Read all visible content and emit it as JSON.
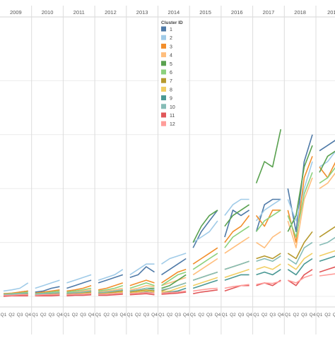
{
  "chart_data": {
    "type": "line",
    "title": "",
    "xlabel": "",
    "ylabel": "",
    "years": [
      "2009",
      "2010",
      "2011",
      "2012",
      "2013",
      "2014",
      "2015",
      "2016",
      "2017",
      "2018",
      "201"
    ],
    "quarters": [
      "Q1",
      "Q2",
      "Q3",
      "Q4"
    ],
    "ylim": [
      0,
      50
    ],
    "grid": true,
    "legend": {
      "title": "Cluster ID",
      "position": "top-center"
    },
    "series": [
      {
        "name": "1",
        "color": "#4e79a7",
        "values": [
          0.5,
          0.5,
          0.8,
          1.0,
          0.8,
          1.0,
          1.5,
          1.8,
          1.5,
          2.0,
          2.5,
          3.0,
          2.5,
          3.0,
          3.5,
          4.0,
          3.5,
          4.0,
          5.5,
          4.5,
          4.0,
          5.0,
          6.0,
          7.0,
          9.0,
          12.0,
          14.0,
          16.0,
          11.0,
          16.0,
          15.0,
          16.0,
          12.0,
          17.0,
          18.0,
          18.0,
          20.0,
          12.0,
          25.0,
          30.0,
          27.0,
          28.0,
          29.0,
          30.0
        ]
      },
      {
        "name": "2",
        "color": "#a0cbe8",
        "values": [
          1.0,
          1.2,
          1.5,
          2.5,
          1.5,
          2.0,
          2.5,
          3.0,
          2.5,
          3.0,
          3.5,
          4.0,
          3.0,
          3.5,
          4.0,
          5.0,
          4.0,
          5.0,
          6.0,
          6.0,
          6.0,
          7.0,
          7.5,
          8.0,
          10.0,
          11.0,
          12.0,
          14.0,
          15.0,
          17.0,
          18.0,
          18.0,
          14.0,
          16.0,
          17.0,
          18.0,
          18.0,
          14.0,
          20.0,
          25.0,
          24.0,
          25.0,
          27.0,
          28.0
        ]
      },
      {
        "name": "3",
        "color": "#f28e2b",
        "values": [
          0.5,
          0.6,
          0.8,
          1.0,
          0.6,
          0.8,
          1.0,
          1.2,
          1.0,
          1.2,
          1.5,
          2.0,
          1.2,
          1.5,
          2.0,
          2.5,
          2.0,
          2.5,
          3.0,
          2.5,
          2.5,
          3.5,
          4.5,
          5.0,
          6.0,
          7.0,
          8.0,
          9.0,
          10.0,
          12.0,
          13.0,
          15.0,
          15.0,
          13.0,
          16.0,
          16.0,
          16.0,
          10.0,
          22.0,
          26.0,
          24.0,
          22.0,
          25.0,
          27.0
        ]
      },
      {
        "name": "4",
        "color": "#ffbe7d",
        "values": [
          0.3,
          0.4,
          0.5,
          0.6,
          0.4,
          0.5,
          0.6,
          0.8,
          0.6,
          0.8,
          1.0,
          1.2,
          0.8,
          1.0,
          1.2,
          1.5,
          1.2,
          1.5,
          2.0,
          1.8,
          2.0,
          2.5,
          3.0,
          3.5,
          4.0,
          5.0,
          6.0,
          7.0,
          8.0,
          9.0,
          10.0,
          11.0,
          10.0,
          9.0,
          11.0,
          12.0,
          14.0,
          9.0,
          18.0,
          22.0,
          20.0,
          21.0,
          23.0,
          24.0
        ]
      },
      {
        "name": "5",
        "color": "#59a14f",
        "values": [
          0.2,
          0.3,
          0.4,
          0.5,
          0.3,
          0.4,
          0.5,
          0.6,
          0.5,
          0.6,
          0.8,
          1.0,
          0.6,
          0.8,
          1.0,
          1.2,
          1.0,
          1.2,
          1.5,
          1.5,
          1.5,
          2.0,
          3.0,
          4.0,
          10.0,
          13.0,
          15.0,
          16.0,
          13.0,
          15.0,
          16.0,
          17.0,
          21.0,
          25.0,
          24.0,
          31.0,
          12.0,
          15.0,
          24.0,
          28.0,
          23.0,
          26.0,
          27.0,
          28.0
        ]
      },
      {
        "name": "6",
        "color": "#8cd17d",
        "values": [
          0.4,
          0.5,
          0.6,
          0.8,
          0.5,
          0.6,
          0.8,
          1.0,
          0.8,
          1.0,
          1.2,
          1.5,
          1.0,
          1.2,
          1.5,
          2.0,
          1.5,
          2.0,
          2.5,
          2.0,
          2.0,
          3.0,
          4.0,
          4.5,
          5.0,
          6.0,
          7.0,
          8.0,
          9.0,
          11.0,
          12.0,
          13.0,
          12.0,
          14.0,
          15.0,
          16.0,
          15.0,
          11.0,
          19.0,
          23.0,
          21.0,
          22.0,
          24.0,
          25.0
        ]
      },
      {
        "name": "7",
        "color": "#b6992d",
        "values": [
          0.2,
          0.2,
          0.3,
          0.4,
          0.2,
          0.3,
          0.4,
          0.5,
          0.4,
          0.5,
          0.6,
          0.8,
          0.5,
          0.6,
          0.8,
          1.0,
          0.8,
          1.0,
          1.2,
          1.0,
          1.0,
          1.5,
          2.0,
          2.5,
          3.0,
          3.5,
          4.0,
          4.5,
          5.0,
          5.5,
          6.0,
          6.5,
          7.0,
          7.5,
          7.0,
          8.0,
          8.0,
          7.0,
          10.0,
          12.0,
          11.0,
          12.0,
          13.0,
          14.0
        ]
      },
      {
        "name": "8",
        "color": "#f1ce63",
        "values": [
          0.1,
          0.2,
          0.2,
          0.3,
          0.2,
          0.2,
          0.3,
          0.4,
          0.3,
          0.4,
          0.5,
          0.6,
          0.4,
          0.5,
          0.6,
          0.8,
          0.6,
          0.8,
          1.0,
          0.8,
          0.8,
          1.0,
          1.5,
          2.0,
          2.0,
          2.5,
          3.0,
          3.5,
          3.5,
          4.0,
          4.5,
          5.0,
          5.0,
          5.5,
          5.0,
          6.0,
          6.0,
          5.0,
          7.0,
          8.0,
          7.5,
          8.0,
          8.5,
          9.0
        ]
      },
      {
        "name": "9",
        "color": "#499894",
        "values": [
          0.1,
          0.1,
          0.2,
          0.2,
          0.1,
          0.2,
          0.2,
          0.3,
          0.2,
          0.3,
          0.4,
          0.5,
          0.3,
          0.4,
          0.5,
          0.6,
          0.5,
          0.6,
          0.8,
          0.6,
          0.6,
          0.8,
          1.0,
          1.5,
          1.5,
          2.0,
          2.5,
          3.0,
          3.0,
          3.5,
          4.0,
          4.0,
          4.0,
          4.5,
          4.0,
          5.0,
          5.0,
          4.0,
          6.0,
          7.0,
          6.5,
          7.0,
          7.5,
          8.0
        ]
      },
      {
        "name": "10",
        "color": "#86bcb6",
        "values": [
          0.3,
          0.4,
          0.5,
          0.6,
          0.4,
          0.5,
          0.6,
          0.7,
          0.6,
          0.7,
          0.8,
          1.0,
          0.7,
          0.8,
          1.0,
          1.2,
          1.0,
          1.2,
          1.5,
          1.2,
          1.2,
          1.5,
          2.0,
          2.5,
          3.0,
          3.5,
          4.0,
          4.5,
          5.0,
          5.5,
          6.0,
          6.5,
          6.5,
          7.0,
          6.5,
          7.5,
          7.0,
          6.0,
          9.0,
          10.0,
          9.5,
          10.0,
          11.0,
          11.5
        ]
      },
      {
        "name": "11",
        "color": "#e15759",
        "values": [
          0.0,
          0.1,
          0.1,
          0.1,
          0.1,
          0.1,
          0.1,
          0.2,
          0.1,
          0.2,
          0.2,
          0.3,
          0.2,
          0.2,
          0.3,
          0.4,
          0.3,
          0.4,
          0.5,
          0.3,
          0.4,
          0.5,
          0.6,
          0.8,
          0.5,
          0.8,
          1.0,
          1.2,
          1.0,
          1.5,
          2.0,
          2.0,
          2.0,
          2.5,
          2.0,
          3.0,
          3.0,
          2.0,
          4.0,
          5.0,
          4.5,
          5.0,
          5.5,
          6.0
        ]
      },
      {
        "name": "12",
        "color": "#ff9d9a",
        "values": [
          0.2,
          0.2,
          0.3,
          0.3,
          0.2,
          0.3,
          0.3,
          0.4,
          0.3,
          0.4,
          0.4,
          0.5,
          0.4,
          0.4,
          0.5,
          0.6,
          0.5,
          0.6,
          0.7,
          0.6,
          0.6,
          0.7,
          0.8,
          1.0,
          1.0,
          1.2,
          1.4,
          1.5,
          1.5,
          1.8,
          2.0,
          2.2,
          2.2,
          2.5,
          2.4,
          2.8,
          3.0,
          2.5,
          3.5,
          4.0,
          3.8,
          4.0,
          4.2,
          4.5
        ]
      }
    ]
  }
}
